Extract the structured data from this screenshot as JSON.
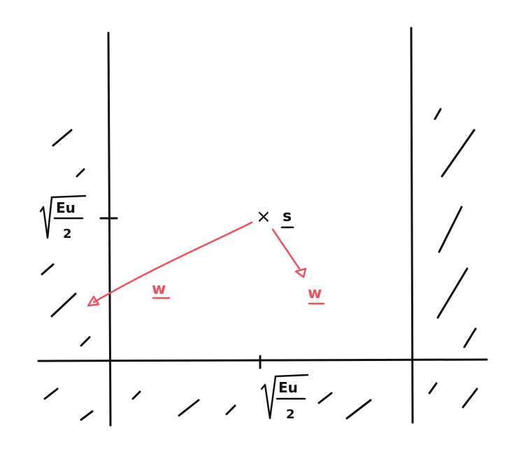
{
  "colors": {
    "ink": "#111111",
    "vector": "#f0505a",
    "background": "#ffffff"
  },
  "labels": {
    "point_s_marker": "×",
    "point_s": "s",
    "vector_w_left": "w",
    "vector_w_right": "w",
    "y_tick_radicand_top": "Eu",
    "y_tick_radicand_bottom": "2",
    "x_tick_radicand_top": "Eu",
    "x_tick_radicand_bottom": "2"
  }
}
